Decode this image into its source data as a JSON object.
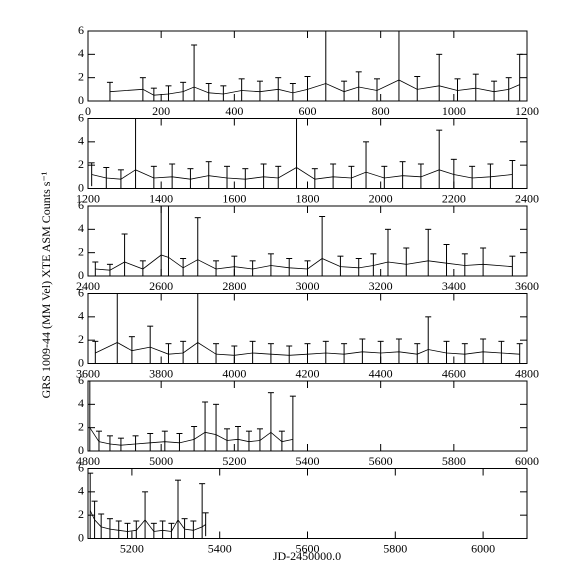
{
  "ylabel": "GRS 1009-44 (MM Vel) XTE ASM Counts s⁻¹",
  "xlabel": "JD-2450000.0",
  "chart_data": [
    {
      "type": "scatter",
      "xlim": [
        0,
        1200
      ],
      "xticks": [
        0,
        200,
        400,
        600,
        800,
        1000,
        1200
      ],
      "ylim": [
        0,
        6
      ],
      "yticks": [
        0,
        2,
        4,
        6
      ],
      "x": [
        60,
        150,
        180,
        220,
        260,
        290,
        330,
        370,
        420,
        470,
        520,
        560,
        600,
        650,
        700,
        740,
        790,
        850,
        900,
        960,
        1010,
        1060,
        1110,
        1150,
        1180
      ],
      "values": [
        0.8,
        1.0,
        0.5,
        0.6,
        0.8,
        1.2,
        0.7,
        0.6,
        0.9,
        0.8,
        1.0,
        0.7,
        1.0,
        1.5,
        0.8,
        1.2,
        0.9,
        1.8,
        1.0,
        1.3,
        0.9,
        1.1,
        0.8,
        1.0,
        1.4
      ],
      "errors": [
        0.8,
        1.0,
        0.6,
        0.7,
        0.8,
        3.6,
        0.8,
        0.7,
        1.0,
        0.9,
        1.0,
        0.8,
        1.1,
        4.5,
        0.9,
        1.3,
        1.0,
        4.2,
        1.1,
        2.7,
        1.0,
        1.2,
        0.9,
        1.0,
        2.6
      ]
    },
    {
      "type": "scatter",
      "xlim": [
        1200,
        2400
      ],
      "xticks": [
        1200,
        1400,
        1600,
        1800,
        2000,
        2200,
        2400
      ],
      "ylim": [
        0,
        6
      ],
      "yticks": [
        0,
        2,
        4,
        6
      ],
      "x": [
        1210,
        1250,
        1290,
        1330,
        1380,
        1430,
        1480,
        1530,
        1580,
        1630,
        1680,
        1720,
        1770,
        1820,
        1870,
        1920,
        1960,
        2010,
        2060,
        2110,
        2160,
        2200,
        2250,
        2300,
        2360
      ],
      "values": [
        1.2,
        0.9,
        0.8,
        1.6,
        0.9,
        1.0,
        0.8,
        1.1,
        0.9,
        0.8,
        1.0,
        0.9,
        1.8,
        0.8,
        1.0,
        0.9,
        1.4,
        0.9,
        1.1,
        1.0,
        1.6,
        1.2,
        0.9,
        1.0,
        1.2
      ],
      "errors": [
        1.0,
        0.9,
        0.8,
        4.4,
        1.0,
        1.1,
        0.9,
        1.2,
        1.0,
        0.9,
        1.1,
        1.0,
        4.4,
        0.9,
        1.1,
        1.0,
        2.6,
        1.0,
        1.2,
        1.1,
        3.4,
        1.3,
        1.0,
        1.1,
        1.2
      ]
    },
    {
      "type": "scatter",
      "xlim": [
        2400,
        3600
      ],
      "xticks": [
        2400,
        2600,
        2800,
        3000,
        3200,
        3400,
        3600
      ],
      "ylim": [
        0,
        6
      ],
      "yticks": [
        0,
        2,
        4,
        6
      ],
      "x": [
        2420,
        2460,
        2500,
        2550,
        2600,
        2620,
        2660,
        2700,
        2750,
        2800,
        2850,
        2900,
        2950,
        3000,
        3040,
        3090,
        3140,
        3180,
        3220,
        3270,
        3330,
        3380,
        3430,
        3480,
        3560
      ],
      "values": [
        0.6,
        0.5,
        1.2,
        0.6,
        1.8,
        1.6,
        0.7,
        1.4,
        0.6,
        0.8,
        0.6,
        0.9,
        0.7,
        0.6,
        1.5,
        0.8,
        0.7,
        0.9,
        1.2,
        1.0,
        1.3,
        1.1,
        0.9,
        1.0,
        0.8
      ],
      "errors": [
        0.6,
        0.5,
        2.4,
        0.7,
        4.6,
        4.6,
        0.8,
        3.6,
        0.7,
        0.9,
        0.7,
        1.0,
        0.8,
        0.7,
        3.6,
        0.9,
        0.8,
        1.0,
        2.8,
        1.4,
        2.7,
        1.6,
        1.0,
        1.4,
        0.9
      ]
    },
    {
      "type": "scatter",
      "xlim": [
        3600,
        4800
      ],
      "xticks": [
        3600,
        3800,
        4000,
        4200,
        4400,
        4600,
        4800
      ],
      "ylim": [
        0,
        6
      ],
      "yticks": [
        0,
        2,
        4,
        6
      ],
      "x": [
        3620,
        3680,
        3720,
        3770,
        3820,
        3860,
        3900,
        3950,
        4000,
        4050,
        4100,
        4150,
        4200,
        4250,
        4300,
        4350,
        4400,
        4450,
        4500,
        4530,
        4580,
        4630,
        4680,
        4730,
        4780
      ],
      "values": [
        0.9,
        1.8,
        1.1,
        1.4,
        0.8,
        0.9,
        1.8,
        0.8,
        0.7,
        0.9,
        0.8,
        0.7,
        0.8,
        0.9,
        0.8,
        1.0,
        0.9,
        1.0,
        0.8,
        1.2,
        0.9,
        0.8,
        1.0,
        0.9,
        0.8
      ],
      "errors": [
        1.0,
        4.2,
        1.2,
        1.8,
        0.9,
        1.0,
        4.2,
        0.9,
        0.8,
        1.0,
        0.9,
        0.8,
        0.9,
        1.0,
        0.9,
        1.1,
        1.0,
        1.1,
        0.9,
        2.8,
        1.0,
        0.9,
        1.1,
        1.0,
        0.9
      ]
    },
    {
      "type": "scatter",
      "xlim": [
        4800,
        6000
      ],
      "xticks": [
        4800,
        5000,
        5200,
        5400,
        5600,
        5800,
        6000
      ],
      "ylim": [
        0,
        6
      ],
      "yticks": [
        0,
        2,
        4,
        6
      ],
      "x": [
        4805,
        4830,
        4860,
        4890,
        4930,
        4970,
        5010,
        5050,
        5090,
        5120,
        5150,
        5180,
        5210,
        5240,
        5270,
        5300,
        5330,
        5360
      ],
      "values": [
        2.0,
        0.8,
        0.6,
        0.5,
        0.6,
        0.7,
        0.8,
        0.7,
        1.0,
        1.6,
        1.4,
        0.9,
        1.0,
        0.8,
        0.9,
        1.6,
        0.8,
        1.0
      ],
      "errors": [
        4.0,
        0.9,
        0.7,
        0.6,
        0.7,
        0.8,
        0.9,
        0.8,
        1.1,
        2.6,
        2.6,
        1.0,
        1.1,
        0.9,
        1.0,
        3.4,
        0.9,
        3.7
      ]
    },
    {
      "type": "scatter",
      "xlim": [
        5100,
        6100
      ],
      "xticks": [
        5200,
        5400,
        5600,
        5800,
        6000
      ],
      "ylim": [
        0,
        6
      ],
      "yticks": [
        0,
        2,
        4,
        6
      ],
      "x": [
        5105,
        5115,
        5130,
        5150,
        5170,
        5190,
        5210,
        5230,
        5250,
        5270,
        5290,
        5305,
        5320,
        5340,
        5360,
        5368
      ],
      "values": [
        2.4,
        1.6,
        1.0,
        0.8,
        0.7,
        0.6,
        0.7,
        1.6,
        0.6,
        0.7,
        0.6,
        1.6,
        0.8,
        0.7,
        1.0,
        1.2
      ],
      "errors": [
        3.2,
        1.6,
        1.1,
        0.9,
        0.8,
        0.7,
        0.8,
        2.4,
        0.7,
        0.8,
        0.7,
        3.4,
        0.9,
        0.8,
        3.7,
        1.0
      ]
    }
  ]
}
